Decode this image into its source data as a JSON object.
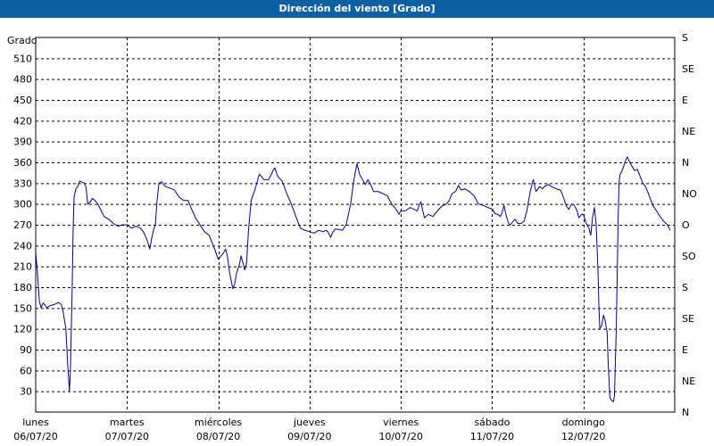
{
  "window": {
    "title": "Dirección del viento [Grado]"
  },
  "chart_data": {
    "type": "line",
    "title": "Dirección del viento [Grado]",
    "ylabel": "Grado",
    "ylim": [
      0,
      540
    ],
    "xlim": [
      0,
      7
    ],
    "grid": true,
    "line_color": "#00008b",
    "grid_color": "#000000",
    "background": "#ffffff",
    "y_ticks": [
      30,
      60,
      90,
      120,
      150,
      180,
      210,
      240,
      270,
      300,
      330,
      360,
      390,
      420,
      450,
      480,
      510
    ],
    "right_ticks": [
      {
        "value": 0,
        "label": "N"
      },
      {
        "value": 45,
        "label": "NE"
      },
      {
        "value": 90,
        "label": "E"
      },
      {
        "value": 135,
        "label": "SE"
      },
      {
        "value": 180,
        "label": "S"
      },
      {
        "value": 225,
        "label": "SO"
      },
      {
        "value": 270,
        "label": "O"
      },
      {
        "value": 315,
        "label": "NO"
      },
      {
        "value": 360,
        "label": "N"
      },
      {
        "value": 405,
        "label": "NE"
      },
      {
        "value": 450,
        "label": "E"
      },
      {
        "value": 495,
        "label": "SE"
      },
      {
        "value": 540,
        "label": "S"
      }
    ],
    "x_ticks": [
      {
        "day": "lunes",
        "date": "06/07/20"
      },
      {
        "day": "martes",
        "date": "07/07/20"
      },
      {
        "day": "miércoles",
        "date": "08/07/20"
      },
      {
        "day": "jueves",
        "date": "09/07/20"
      },
      {
        "day": "viernes",
        "date": "10/07/20"
      },
      {
        "day": "sábado",
        "date": "11/07/20"
      },
      {
        "day": "domingo",
        "date": "12/07/20"
      }
    ],
    "series": [
      {
        "points": [
          [
            0.0,
            230
          ],
          [
            0.02,
            200
          ],
          [
            0.04,
            160
          ],
          [
            0.06,
            150
          ],
          [
            0.08,
            157
          ],
          [
            0.1,
            155
          ],
          [
            0.12,
            150
          ],
          [
            0.15,
            153
          ],
          [
            0.2,
            155
          ],
          [
            0.25,
            158
          ],
          [
            0.28,
            155
          ],
          [
            0.3,
            145
          ],
          [
            0.33,
            120
          ],
          [
            0.35,
            70
          ],
          [
            0.37,
            30
          ],
          [
            0.38,
            60
          ],
          [
            0.4,
            180
          ],
          [
            0.41,
            260
          ],
          [
            0.42,
            310
          ],
          [
            0.44,
            322
          ],
          [
            0.46,
            325
          ],
          [
            0.48,
            333
          ],
          [
            0.5,
            332
          ],
          [
            0.53,
            330
          ],
          [
            0.55,
            325
          ],
          [
            0.57,
            300
          ],
          [
            0.6,
            303
          ],
          [
            0.62,
            308
          ],
          [
            0.65,
            305
          ],
          [
            0.68,
            300
          ],
          [
            0.7,
            295
          ],
          [
            0.75,
            282
          ],
          [
            0.8,
            278
          ],
          [
            0.85,
            272
          ],
          [
            0.9,
            268
          ],
          [
            0.95,
            270
          ],
          [
            1.0,
            270
          ],
          [
            1.05,
            265
          ],
          [
            1.1,
            268
          ],
          [
            1.15,
            265
          ],
          [
            1.18,
            260
          ],
          [
            1.22,
            248
          ],
          [
            1.25,
            235
          ],
          [
            1.27,
            250
          ],
          [
            1.29,
            262
          ],
          [
            1.31,
            270
          ],
          [
            1.33,
            305
          ],
          [
            1.35,
            330
          ],
          [
            1.38,
            332
          ],
          [
            1.42,
            325
          ],
          [
            1.47,
            323
          ],
          [
            1.52,
            320
          ],
          [
            1.57,
            310
          ],
          [
            1.62,
            305
          ],
          [
            1.67,
            305
          ],
          [
            1.7,
            295
          ],
          [
            1.75,
            280
          ],
          [
            1.8,
            270
          ],
          [
            1.85,
            260
          ],
          [
            1.9,
            255
          ],
          [
            1.93,
            245
          ],
          [
            1.96,
            235
          ],
          [
            2.0,
            220
          ],
          [
            2.03,
            225
          ],
          [
            2.06,
            230
          ],
          [
            2.08,
            235
          ],
          [
            2.1,
            225
          ],
          [
            2.12,
            205
          ],
          [
            2.14,
            190
          ],
          [
            2.16,
            178
          ],
          [
            2.18,
            185
          ],
          [
            2.2,
            200
          ],
          [
            2.23,
            212
          ],
          [
            2.25,
            225
          ],
          [
            2.27,
            215
          ],
          [
            2.29,
            205
          ],
          [
            2.31,
            215
          ],
          [
            2.33,
            260
          ],
          [
            2.36,
            305
          ],
          [
            2.4,
            320
          ],
          [
            2.45,
            343
          ],
          [
            2.5,
            335
          ],
          [
            2.55,
            335
          ],
          [
            2.58,
            342
          ],
          [
            2.6,
            348
          ],
          [
            2.62,
            352
          ],
          [
            2.65,
            340
          ],
          [
            2.7,
            333
          ],
          [
            2.75,
            315
          ],
          [
            2.8,
            300
          ],
          [
            2.85,
            282
          ],
          [
            2.9,
            265
          ],
          [
            2.95,
            262
          ],
          [
            3.0,
            260
          ],
          [
            3.05,
            258
          ],
          [
            3.1,
            262
          ],
          [
            3.15,
            260
          ],
          [
            3.18,
            262
          ],
          [
            3.2,
            260
          ],
          [
            3.23,
            252
          ],
          [
            3.25,
            258
          ],
          [
            3.28,
            264
          ],
          [
            3.32,
            263
          ],
          [
            3.36,
            262
          ],
          [
            3.4,
            270
          ],
          [
            3.45,
            300
          ],
          [
            3.48,
            330
          ],
          [
            3.5,
            345
          ],
          [
            3.52,
            358
          ],
          [
            3.55,
            342
          ],
          [
            3.58,
            335
          ],
          [
            3.61,
            328
          ],
          [
            3.64,
            335
          ],
          [
            3.67,
            328
          ],
          [
            3.7,
            318
          ],
          [
            3.75,
            318
          ],
          [
            3.8,
            315
          ],
          [
            3.85,
            312
          ],
          [
            3.9,
            300
          ],
          [
            3.95,
            292
          ],
          [
            3.98,
            285
          ],
          [
            4.0,
            290
          ],
          [
            4.05,
            290
          ],
          [
            4.1,
            295
          ],
          [
            4.15,
            292
          ],
          [
            4.18,
            290
          ],
          [
            4.2,
            298
          ],
          [
            4.22,
            303
          ],
          [
            4.24,
            290
          ],
          [
            4.26,
            280
          ],
          [
            4.3,
            285
          ],
          [
            4.35,
            282
          ],
          [
            4.4,
            290
          ],
          [
            4.45,
            297
          ],
          [
            4.5,
            300
          ],
          [
            4.53,
            305
          ],
          [
            4.56,
            315
          ],
          [
            4.6,
            318
          ],
          [
            4.63,
            327
          ],
          [
            4.66,
            320
          ],
          [
            4.7,
            322
          ],
          [
            4.75,
            318
          ],
          [
            4.8,
            312
          ],
          [
            4.85,
            300
          ],
          [
            4.9,
            298
          ],
          [
            4.95,
            295
          ],
          [
            5.0,
            293
          ],
          [
            5.03,
            286
          ],
          [
            5.06,
            285
          ],
          [
            5.09,
            282
          ],
          [
            5.11,
            288
          ],
          [
            5.13,
            298
          ],
          [
            5.15,
            285
          ],
          [
            5.18,
            272
          ],
          [
            5.2,
            270
          ],
          [
            5.23,
            275
          ],
          [
            5.25,
            278
          ],
          [
            5.28,
            272
          ],
          [
            5.32,
            272
          ],
          [
            5.35,
            275
          ],
          [
            5.38,
            290
          ],
          [
            5.42,
            320
          ],
          [
            5.45,
            335
          ],
          [
            5.48,
            318
          ],
          [
            5.52,
            325
          ],
          [
            5.55,
            322
          ],
          [
            5.58,
            326
          ],
          [
            5.62,
            328
          ],
          [
            5.65,
            325
          ],
          [
            5.7,
            322
          ],
          [
            5.75,
            320
          ],
          [
            5.78,
            310
          ],
          [
            5.81,
            298
          ],
          [
            5.84,
            292
          ],
          [
            5.87,
            300
          ],
          [
            5.9,
            298
          ],
          [
            5.93,
            290
          ],
          [
            5.95,
            280
          ],
          [
            5.98,
            285
          ],
          [
            6.0,
            285
          ],
          [
            6.03,
            272
          ],
          [
            6.06,
            265
          ],
          [
            6.08,
            255
          ],
          [
            6.1,
            280
          ],
          [
            6.12,
            295
          ],
          [
            6.14,
            270
          ],
          [
            6.16,
            200
          ],
          [
            6.17,
            150
          ],
          [
            6.18,
            120
          ],
          [
            6.2,
            125
          ],
          [
            6.22,
            140
          ],
          [
            6.24,
            130
          ],
          [
            6.26,
            115
          ],
          [
            6.27,
            75
          ],
          [
            6.29,
            20
          ],
          [
            6.31,
            17
          ],
          [
            6.33,
            15
          ],
          [
            6.34,
            25
          ],
          [
            6.36,
            120
          ],
          [
            6.37,
            200
          ],
          [
            6.38,
            280
          ],
          [
            6.39,
            330
          ],
          [
            6.4,
            342
          ],
          [
            6.43,
            350
          ],
          [
            6.46,
            362
          ],
          [
            6.48,
            368
          ],
          [
            6.5,
            362
          ],
          [
            6.53,
            355
          ],
          [
            6.56,
            348
          ],
          [
            6.59,
            350
          ],
          [
            6.62,
            340
          ],
          [
            6.65,
            330
          ],
          [
            6.68,
            325
          ],
          [
            6.72,
            312
          ],
          [
            6.76,
            298
          ],
          [
            6.8,
            290
          ],
          [
            6.84,
            282
          ],
          [
            6.88,
            275
          ],
          [
            6.92,
            270
          ],
          [
            6.95,
            262
          ]
        ]
      }
    ]
  }
}
